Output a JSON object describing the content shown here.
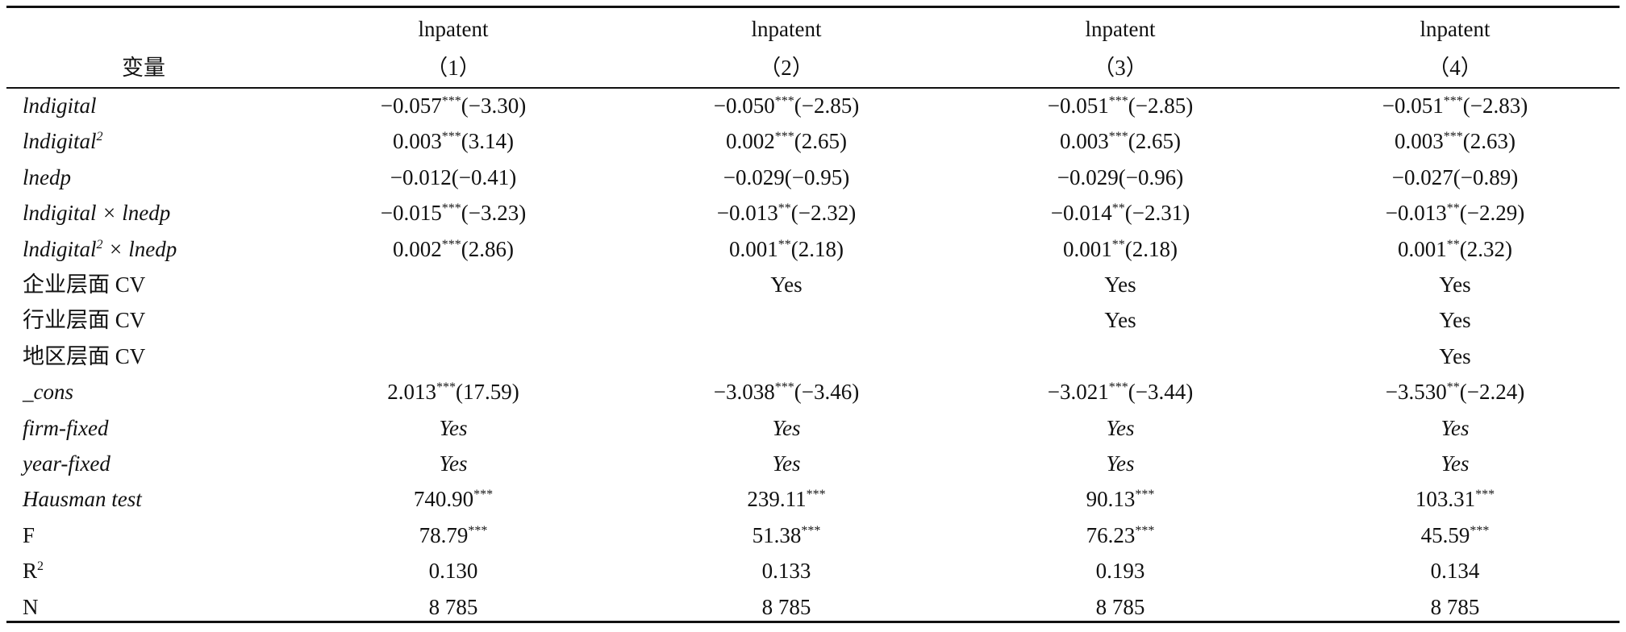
{
  "header": {
    "variable": "变量",
    "columns": [
      {
        "dep": "lnpatent",
        "num": "（1）"
      },
      {
        "dep": "lnpatent",
        "num": "（2）"
      },
      {
        "dep": "lnpatent",
        "num": "（3）"
      },
      {
        "dep": "lnpatent",
        "num": "（4）"
      }
    ]
  },
  "table": {
    "rows": [
      {
        "label": {
          "text": "lndigital",
          "italic": true
        },
        "cells": [
          {
            "coef": "−0.057",
            "stars": "***",
            "t": "(−3.30)"
          },
          {
            "coef": "−0.050",
            "stars": "***",
            "t": "(−2.85)"
          },
          {
            "coef": "−0.051",
            "stars": "***",
            "t": "(−2.85)"
          },
          {
            "coef": "−0.051",
            "stars": "***",
            "t": "(−2.83)"
          }
        ]
      },
      {
        "label": {
          "text": "lndigital",
          "sup": "2",
          "italic": true
        },
        "cells": [
          {
            "coef": "0.003",
            "stars": "***",
            "t": "(3.14)"
          },
          {
            "coef": "0.002",
            "stars": "***",
            "t": "(2.65)"
          },
          {
            "coef": "0.003",
            "stars": "***",
            "t": "(2.65)"
          },
          {
            "coef": "0.003",
            "stars": "***",
            "t": "(2.63)"
          }
        ]
      },
      {
        "label": {
          "text": "lnedp",
          "italic": true
        },
        "cells": [
          {
            "coef": "−0.012",
            "t": "(−0.41)"
          },
          {
            "coef": "−0.029",
            "t": "(−0.95)"
          },
          {
            "coef": "−0.029",
            "t": "(−0.96)"
          },
          {
            "coef": "−0.027",
            "t": "(−0.89)"
          }
        ]
      },
      {
        "label": {
          "text": "lndigital × lnedp",
          "italic": true
        },
        "cells": [
          {
            "coef": "−0.015",
            "stars": "***",
            "t": "(−3.23)"
          },
          {
            "coef": "−0.013",
            "stars": "**",
            "t": "(−2.32)"
          },
          {
            "coef": "−0.014",
            "stars": "**",
            "t": "(−2.31)"
          },
          {
            "coef": "−0.013",
            "stars": "**",
            "t": "(−2.29)"
          }
        ]
      },
      {
        "label": {
          "text": "lndigital",
          "sup": "2",
          "tail": " × lnedp",
          "italic": true
        },
        "cells": [
          {
            "coef": "0.002",
            "stars": "***",
            "t": "(2.86)"
          },
          {
            "coef": "0.001",
            "stars": "**",
            "t": "(2.18)"
          },
          {
            "coef": "0.001",
            "stars": "**",
            "t": "(2.18)"
          },
          {
            "coef": "0.001",
            "stars": "**",
            "t": "(2.32)"
          }
        ]
      },
      {
        "label": {
          "text": "企业层面 CV"
        },
        "cells": [
          null,
          "Yes",
          "Yes",
          "Yes"
        ]
      },
      {
        "label": {
          "text": "行业层面 CV"
        },
        "cells": [
          null,
          null,
          "Yes",
          "Yes"
        ]
      },
      {
        "label": {
          "text": "地区层面 CV"
        },
        "cells": [
          null,
          null,
          null,
          "Yes"
        ]
      },
      {
        "label": {
          "text": "_cons",
          "italic": true
        },
        "cells": [
          {
            "coef": "2.013",
            "stars": "***",
            "t": "(17.59)"
          },
          {
            "coef": "−3.038",
            "stars": "***",
            "t": "(−3.46)"
          },
          {
            "coef": "−3.021",
            "stars": "***",
            "t": "(−3.44)"
          },
          {
            "coef": "−3.530",
            "stars": "**",
            "t": "(−2.24)"
          }
        ]
      },
      {
        "label": {
          "text": "firm-fixed",
          "italic": true
        },
        "italic": true,
        "cells": [
          "Yes",
          "Yes",
          "Yes",
          "Yes"
        ]
      },
      {
        "label": {
          "text": "year-fixed",
          "italic": true
        },
        "italic": true,
        "cells": [
          "Yes",
          "Yes",
          "Yes",
          "Yes"
        ]
      },
      {
        "label": {
          "text": "Hausman test",
          "italic": true
        },
        "cells": [
          {
            "coef": "740.90",
            "stars": "***"
          },
          {
            "coef": "239.11",
            "stars": "***"
          },
          {
            "coef": "90.13",
            "stars": "***"
          },
          {
            "coef": "103.31",
            "stars": "***"
          }
        ]
      },
      {
        "label": {
          "text": "F"
        },
        "cells": [
          {
            "coef": "78.79",
            "stars": "***"
          },
          {
            "coef": "51.38",
            "stars": "***"
          },
          {
            "coef": "76.23",
            "stars": "***"
          },
          {
            "coef": "45.59",
            "stars": "***"
          }
        ]
      },
      {
        "label": {
          "text": "R",
          "sup": "2"
        },
        "cells": [
          "0.130",
          "0.133",
          "0.193",
          "0.134"
        ]
      },
      {
        "label": {
          "text": "N"
        },
        "cells": [
          "8 785",
          "8 785",
          "8 785",
          "8 785"
        ]
      }
    ]
  }
}
